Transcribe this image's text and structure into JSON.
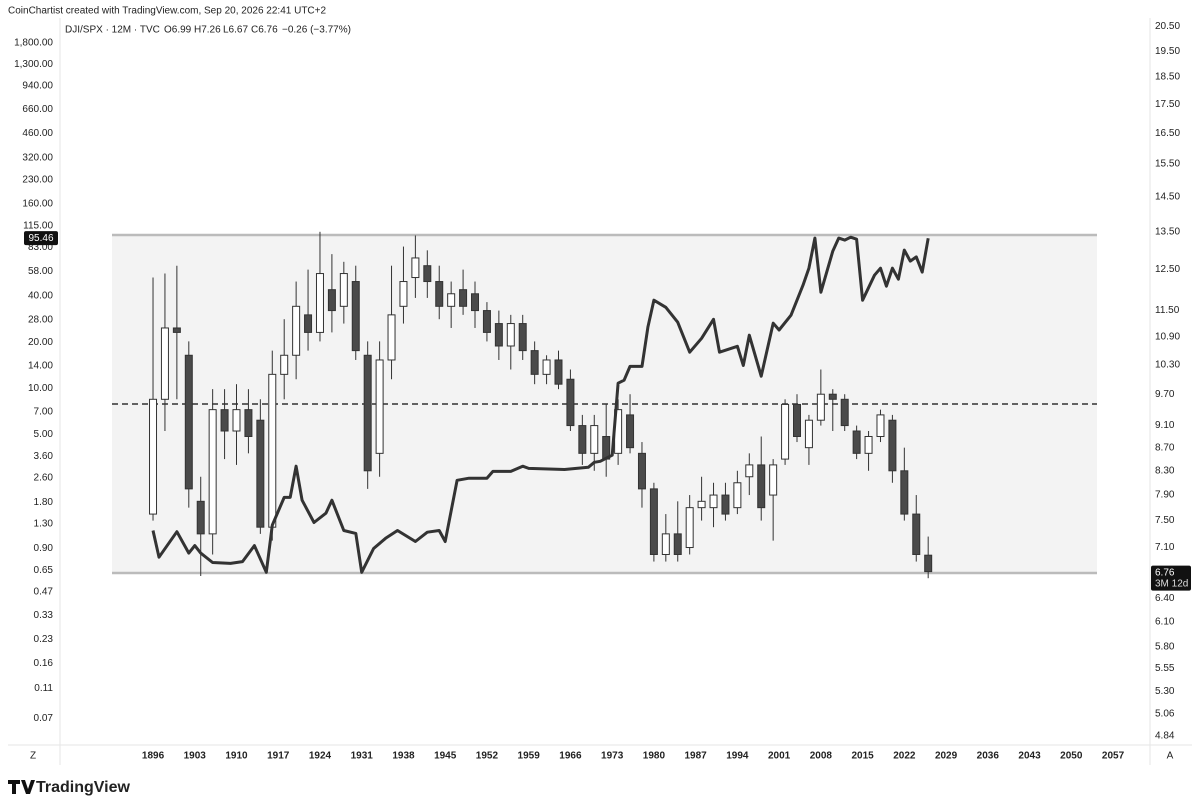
{
  "header": {
    "credit": "CoinChartist created with TradingView.com, Sep 20, 2026 22:41 UTC+2",
    "legend_open": "O6.99",
    "legend_high": "H7.26",
    "legend_low": "L6.67",
    "legend_close": "C6.76",
    "legend_change": "−0.26 (−3.77%)",
    "countdown": "3M 12d",
    "left_corner": "Z",
    "right_corner": "A",
    "logo": "TradingView"
  },
  "chart_data": {
    "type": "candlestick",
    "log_scale": true,
    "grid": false,
    "xlim": [
      1880.4,
      2063.2
    ],
    "xticks": [
      1896,
      1903,
      1910,
      1917,
      1924,
      1931,
      1938,
      1945,
      1952,
      1959,
      1966,
      1973,
      1980,
      1987,
      1994,
      2001,
      2008,
      2015,
      2022,
      2029,
      2036,
      2043,
      2050,
      2057
    ],
    "ylim": [
      0.047,
      2610
    ],
    "yticks": [
      {
        "value": 1800,
        "label": "1,800.00"
      },
      {
        "value": 1300,
        "label": "1,300.00"
      },
      {
        "value": 940,
        "label": "940.00"
      },
      {
        "value": 660,
        "label": "660.00"
      },
      {
        "value": 460,
        "label": "460.00"
      },
      {
        "value": 320,
        "label": "320.00"
      },
      {
        "value": 230,
        "label": "230.00"
      },
      {
        "value": 160,
        "label": "160.00"
      },
      {
        "value": 115,
        "label": "115.00"
      },
      {
        "value": 83,
        "label": "83.00"
      },
      {
        "value": 58,
        "label": "58.00"
      },
      {
        "value": 40,
        "label": "40.00"
      },
      {
        "value": 28,
        "label": "28.00"
      },
      {
        "value": 20,
        "label": "20.00"
      },
      {
        "value": 14,
        "label": "14.00"
      },
      {
        "value": 10,
        "label": "10.00"
      },
      {
        "value": 7,
        "label": "7.00"
      },
      {
        "value": 5,
        "label": "5.00"
      },
      {
        "value": 3.6,
        "label": "3.60"
      },
      {
        "value": 2.6,
        "label": "2.60"
      },
      {
        "value": 1.8,
        "label": "1.80"
      },
      {
        "value": 1.3,
        "label": "1.30"
      },
      {
        "value": 0.9,
        "label": "0.90"
      },
      0.65,
      0.47,
      0.33,
      0.23,
      0.16,
      0.11,
      0.07
    ],
    "y2lim": [
      4.75,
      20.86
    ],
    "y2ticks": [
      {
        "value": 20.5,
        "label": "20.50"
      },
      {
        "value": 19.5,
        "label": "19.50"
      },
      {
        "value": 18.5,
        "label": "18.50"
      },
      {
        "value": 17.5,
        "label": "17.50"
      },
      {
        "value": 16.5,
        "label": "16.50"
      },
      {
        "value": 15.5,
        "label": "15.50"
      },
      {
        "value": 14.5,
        "label": "14.50"
      },
      {
        "value": 13.5,
        "label": "13.50"
      },
      {
        "value": 12.5,
        "label": "12.50"
      },
      {
        "value": 11.5,
        "label": "11.50"
      },
      {
        "value": 10.9,
        "label": "10.90"
      },
      {
        "value": 10.3,
        "label": "10.30"
      },
      {
        "value": 9.7,
        "label": "9.70"
      },
      {
        "value": 9.1,
        "label": "9.10"
      },
      {
        "value": 8.7,
        "label": "8.70"
      },
      {
        "value": 8.3,
        "label": "8.30"
      },
      {
        "value": 7.9,
        "label": "7.90"
      },
      {
        "value": 7.5,
        "label": "7.50"
      },
      {
        "value": 7.1,
        "label": "7.10"
      },
      {
        "value": 6.4,
        "label": "6.40"
      },
      {
        "value": 6.1,
        "label": "6.10"
      },
      {
        "value": 5.8,
        "label": "5.80"
      },
      5.55,
      {
        "value": 5.3,
        "label": "5.30"
      },
      5.06,
      4.84
    ],
    "series": [
      {
        "name": "DJI/SPX · 12M · TVC",
        "type": "candlestick",
        "axis": "y2",
        "color_up": "#ffffff",
        "color_down": "#4a4a4a",
        "color": "#333333",
        "x": [
          1896,
          1898,
          1900,
          1902,
          1904,
          1906,
          1908,
          1910,
          1912,
          1914,
          1916,
          1918,
          1920,
          1922,
          1924,
          1926,
          1928,
          1930,
          1932,
          1934,
          1936,
          1938,
          1940,
          1942,
          1944,
          1946,
          1948,
          1950,
          1952,
          1954,
          1956,
          1958,
          1960,
          1962,
          1964,
          1966,
          1968,
          1970,
          1972,
          1974,
          1976,
          1978,
          1980,
          1982,
          1984,
          1986,
          1988,
          1990,
          1992,
          1994,
          1996,
          1998,
          2000,
          2002,
          2004,
          2006,
          2008,
          2010,
          2012,
          2014,
          2016,
          2018,
          2020,
          2022,
          2024,
          2026
        ],
        "open": [
          7.6,
          9.6,
          11.1,
          10.5,
          7.8,
          7.3,
          9.4,
          9.0,
          9.4,
          9.2,
          7.4,
          10.1,
          10.5,
          11.4,
          11.0,
          12.0,
          11.6,
          12.2,
          10.5,
          8.6,
          10.4,
          11.6,
          12.3,
          12.6,
          12.2,
          11.6,
          12.0,
          11.9,
          11.5,
          11.2,
          10.7,
          11.2,
          10.6,
          10.1,
          10.4,
          10.0,
          9.1,
          8.6,
          8.9,
          8.6,
          9.3,
          8.6,
          8.0,
          7.0,
          7.3,
          7.1,
          7.7,
          7.7,
          7.9,
          7.7,
          8.2,
          8.4,
          7.9,
          8.5,
          9.5,
          8.7,
          9.2,
          9.7,
          9.6,
          9.0,
          8.6,
          8.9,
          9.2,
          8.3,
          7.6,
          6.99
        ],
        "high": [
          12.3,
          12.4,
          12.6,
          10.8,
          8.2,
          9.8,
          9.8,
          9.9,
          9.8,
          9.6,
          10.6,
          11.3,
          12.2,
          12.5,
          13.5,
          12.9,
          12.7,
          12.6,
          10.8,
          10.8,
          12.6,
          13.1,
          13.4,
          13.0,
          12.6,
          12.2,
          12.5,
          12.2,
          11.7,
          11.5,
          11.4,
          11.4,
          10.8,
          10.5,
          10.6,
          10.2,
          9.3,
          9.3,
          9.5,
          9.6,
          9.7,
          8.8,
          8.1,
          7.6,
          7.8,
          7.9,
          8.2,
          8.1,
          8.1,
          8.3,
          8.6,
          8.9,
          8.5,
          9.6,
          9.7,
          9.3,
          10.2,
          9.8,
          9.7,
          9.1,
          9.0,
          9.4,
          9.3,
          8.7,
          7.9,
          7.26
        ],
        "low": [
          7.5,
          9.0,
          9.6,
          7.7,
          6.7,
          7.0,
          8.5,
          8.4,
          8.6,
          7.3,
          7.2,
          9.6,
          10.0,
          10.6,
          10.8,
          11.0,
          11.2,
          10.4,
          8.0,
          8.2,
          10.0,
          11.2,
          11.8,
          11.8,
          11.3,
          11.1,
          11.4,
          11.1,
          10.8,
          10.4,
          10.2,
          10.4,
          9.9,
          9.9,
          9.8,
          9.0,
          8.4,
          8.3,
          8.2,
          8.4,
          8.6,
          7.7,
          6.9,
          6.9,
          6.9,
          7.0,
          7.5,
          7.4,
          7.5,
          7.6,
          7.9,
          7.5,
          7.2,
          8.4,
          8.8,
          8.4,
          9.1,
          9.0,
          9.0,
          8.5,
          8.3,
          8.8,
          8.1,
          7.5,
          6.9,
          6.67
        ],
        "close": [
          9.6,
          11.1,
          11.0,
          8.0,
          7.3,
          9.4,
          9.0,
          9.4,
          8.9,
          7.4,
          10.1,
          10.5,
          11.6,
          11.0,
          12.4,
          11.5,
          12.4,
          10.6,
          8.3,
          10.4,
          11.4,
          12.2,
          12.8,
          12.2,
          11.6,
          11.9,
          11.6,
          11.5,
          11.0,
          10.7,
          11.2,
          10.6,
          10.1,
          10.4,
          9.9,
          9.1,
          8.6,
          9.1,
          8.5,
          9.4,
          8.7,
          8.0,
          7.0,
          7.3,
          7.0,
          7.7,
          7.8,
          7.9,
          7.6,
          8.1,
          8.4,
          7.7,
          8.4,
          9.5,
          8.9,
          9.2,
          9.7,
          9.6,
          9.1,
          8.6,
          8.9,
          9.3,
          8.3,
          7.6,
          7.0,
          6.76
        ]
      },
      {
        "type": "line",
        "axis": "y",
        "color": "#333333",
        "x": [
          1896,
          1897,
          1900,
          1902,
          1903,
          1904,
          1906,
          1909,
          1911,
          1913,
          1915,
          1916,
          1918,
          1919,
          1920,
          1921,
          1923,
          1925,
          1926,
          1928,
          1930,
          1931,
          1933,
          1935,
          1937,
          1940,
          1942,
          1944,
          1945,
          1947,
          1949,
          1952,
          1953,
          1956,
          1958,
          1959,
          1965,
          1969,
          1970,
          1971,
          1973,
          1974,
          1975,
          1976,
          1978,
          1979,
          1980,
          1982,
          1984,
          1986,
          1988,
          1990,
          1991,
          1994,
          1995,
          1996,
          1998,
          2000,
          2001,
          2003,
          2005,
          2006,
          2007,
          2008,
          2010,
          2011,
          2012,
          2013,
          2014,
          2015,
          2017,
          2018,
          2019,
          2020,
          2021,
          2022,
          2023,
          2024,
          2025,
          2026
        ],
        "values": [
          1.18,
          0.79,
          1.16,
          0.84,
          0.94,
          0.84,
          0.73,
          0.72,
          0.74,
          0.94,
          0.63,
          1.28,
          1.94,
          1.94,
          3.1,
          1.86,
          1.33,
          1.53,
          1.86,
          1.18,
          1.13,
          0.63,
          0.9,
          1.05,
          1.18,
          1.0,
          1.15,
          1.18,
          1.0,
          2.51,
          2.59,
          2.59,
          2.87,
          2.87,
          3.1,
          3.0,
          2.95,
          3.05,
          3.29,
          3.34,
          3.66,
          10.8,
          11.3,
          13.9,
          13.9,
          25.1,
          37.6,
          33.8,
          27.0,
          17.2,
          21.2,
          28.2,
          17.2,
          18.8,
          14.1,
          22.2,
          12.0,
          26.6,
          24.0,
          30.0,
          47.1,
          60.8,
          95.5,
          42.4,
          78.6,
          95.5,
          92.7,
          96.9,
          94.0,
          37.6,
          54.7,
          60.8,
          46.4,
          60.8,
          51.5,
          79.8,
          67.6,
          72.0,
          57.3,
          95.46
        ]
      }
    ]
  }
}
